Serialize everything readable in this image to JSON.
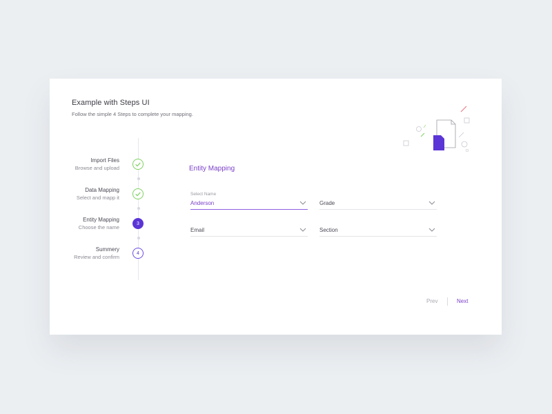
{
  "header": {
    "title": "Example with Steps UI",
    "subtitle": "Follow the simple 4 Steps to complete your mapping."
  },
  "steps": [
    {
      "title": "Import Files",
      "description": "Browse and upload",
      "status": "completed",
      "icon": "check-icon"
    },
    {
      "title": "Data Mapping",
      "description": "Select and mapp it",
      "status": "completed",
      "icon": "check-icon"
    },
    {
      "title": "Entity Mapping",
      "description": "Choose the name",
      "status": "active",
      "number": "3"
    },
    {
      "title": "Summery",
      "description": "Review and confirm",
      "status": "pending",
      "number": "4"
    }
  ],
  "form": {
    "section_title": "Entity Mapping",
    "fields": {
      "name": {
        "label": "Select Name",
        "value": "Anderson"
      },
      "grade": {
        "value": "Grade"
      },
      "email": {
        "value": "Email"
      },
      "section": {
        "value": "Section"
      }
    }
  },
  "nav": {
    "prev_label": "Prev",
    "next_label": "Next"
  },
  "colors": {
    "accent": "#5b35d5",
    "accent_text": "#7b3fc9",
    "success": "#7ed05f",
    "background": "#eceff2",
    "card": "#ffffff"
  }
}
